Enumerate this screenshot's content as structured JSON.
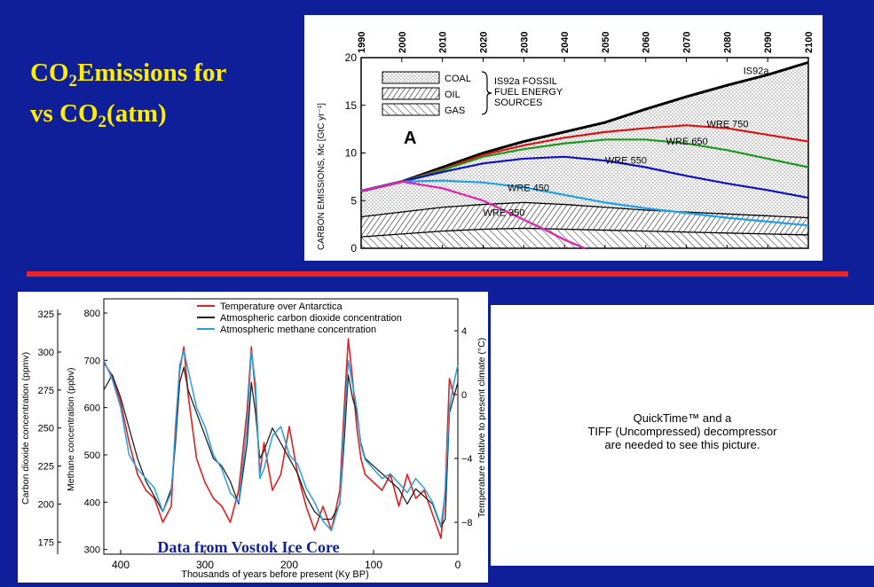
{
  "slide": {
    "title_parts": [
      "CO",
      "2",
      "Emissions for",
      "vs CO",
      "2",
      "(atm)"
    ],
    "colors": {
      "background": "#0f1f9a",
      "title": "#ffee00",
      "divider": "#e8262a"
    }
  },
  "quicktime_notice": {
    "lines": [
      "QuickTime™ and a",
      "TIFF (Uncompressed) decompressor",
      "are needed to see this picture."
    ]
  },
  "chart_data": [
    {
      "type": "line",
      "panel_label": "A",
      "xlabel": "",
      "ylabel": "CARBON EMISSIONS, Ṁc [GtC yr⁻¹]",
      "xlim": [
        1990,
        2100
      ],
      "ylim": [
        0,
        20
      ],
      "x_ticks": [
        "1990",
        "2000",
        "2010",
        "2020",
        "2030",
        "2040",
        "2050",
        "2060",
        "2070",
        "2080",
        "2090",
        "2100"
      ],
      "y_ticks": [
        "0",
        "5",
        "10",
        "15",
        "20"
      ],
      "legend": {
        "entries": [
          "COAL",
          "OIL",
          "GAS"
        ],
        "group_label": [
          "IS92a FOSSIL",
          "FUEL ENERGY",
          "SOURCES"
        ]
      },
      "series": [
        {
          "name": "IS92a",
          "color": "#000000",
          "x": [
            1990,
            2000,
            2010,
            2020,
            2030,
            2040,
            2050,
            2060,
            2070,
            2080,
            2090,
            2100
          ],
          "y": [
            6.0,
            7.0,
            8.5,
            10.0,
            11.2,
            12.2,
            13.2,
            14.6,
            15.9,
            17.1,
            18.2,
            19.5
          ]
        },
        {
          "name": "WRE 750",
          "color": "#e01010",
          "x": [
            1990,
            2000,
            2010,
            2020,
            2030,
            2040,
            2050,
            2060,
            2070,
            2080,
            2090,
            2100
          ],
          "y": [
            6.0,
            7.0,
            8.3,
            9.8,
            10.8,
            11.6,
            12.2,
            12.6,
            12.9,
            12.6,
            11.9,
            11.2
          ]
        },
        {
          "name": "WRE 650",
          "color": "#1a9a1a",
          "x": [
            1990,
            2000,
            2010,
            2020,
            2030,
            2040,
            2050,
            2060,
            2070,
            2080,
            2090,
            2100
          ],
          "y": [
            6.0,
            7.0,
            8.2,
            9.6,
            10.4,
            11.0,
            11.4,
            11.4,
            11.0,
            10.3,
            9.4,
            8.5
          ]
        },
        {
          "name": "WRE 550",
          "color": "#1010c0",
          "x": [
            1990,
            2000,
            2010,
            2020,
            2030,
            2040,
            2050,
            2060,
            2070,
            2080,
            2090,
            2100
          ],
          "y": [
            6.0,
            7.0,
            8.0,
            8.9,
            9.4,
            9.6,
            9.2,
            8.5,
            7.6,
            6.8,
            6.1,
            5.3
          ]
        },
        {
          "name": "WRE 450",
          "color": "#20a0e8",
          "x": [
            1990,
            2000,
            2010,
            2020,
            2030,
            2040,
            2050,
            2060,
            2070,
            2080,
            2090,
            2100
          ],
          "y": [
            6.0,
            7.0,
            7.1,
            6.9,
            6.4,
            5.6,
            4.8,
            4.2,
            3.7,
            3.2,
            2.8,
            2.4
          ]
        },
        {
          "name": "WRE 350",
          "color": "#e020b0",
          "x": [
            1990,
            2000,
            2010,
            2020,
            2025,
            2030,
            2035,
            2040,
            2045
          ],
          "y": [
            6.0,
            7.0,
            6.3,
            5.0,
            4.0,
            3.0,
            2.0,
            0.9,
            0.0
          ]
        }
      ],
      "fossil_bands": {
        "x": [
          1990,
          2000,
          2010,
          2020,
          2030,
          2040,
          2050,
          2060,
          2070,
          2080,
          2090,
          2100
        ],
        "gas_top": [
          1.2,
          1.5,
          1.8,
          2.0,
          2.1,
          2.0,
          1.9,
          1.8,
          1.7,
          1.6,
          1.5,
          1.4
        ],
        "oil_top": [
          3.3,
          3.8,
          4.3,
          4.6,
          4.8,
          4.6,
          4.3,
          4.0,
          3.8,
          3.6,
          3.4,
          3.2
        ]
      },
      "annotations": [
        "IS92a",
        "WRE 750",
        "WRE 650",
        "WRE 550",
        "WRE 450",
        "WRE 350"
      ]
    },
    {
      "type": "line",
      "caption": "Data from Vostok Ice Core",
      "xlabel": "Thousands of years before present (Ky BP)",
      "xlim": [
        420,
        0
      ],
      "x_ticks": [
        "400",
        "300",
        "200",
        "100",
        "0"
      ],
      "axes": {
        "co2": {
          "label": "Carbon dioxide concentration (ppmv)",
          "range": [
            167,
            335
          ],
          "ticks": [
            "175",
            "200",
            "225",
            "250",
            "275",
            "300",
            "325"
          ]
        },
        "methane": {
          "label": "Methane concentration (ppbv)",
          "range": [
            290,
            830
          ],
          "ticks": [
            "300",
            "400",
            "500",
            "600",
            "700",
            "800"
          ]
        },
        "temperature": {
          "label": "Temperature relative to present climate (°C)",
          "range": [
            -10,
            6
          ],
          "ticks": [
            "4",
            "0",
            "−4",
            "−8"
          ]
        }
      },
      "series": [
        {
          "name": "Temperature over Antarctica",
          "color": "#e02020"
        },
        {
          "name": "Atmospheric carbon dioxide concentration",
          "color": "#222222"
        },
        {
          "name": "Atmospheric methane concentration",
          "color": "#2a9fe0"
        }
      ],
      "x": [
        420,
        410,
        400,
        390,
        380,
        370,
        360,
        350,
        340,
        335,
        330,
        325,
        320,
        310,
        300,
        290,
        280,
        270,
        260,
        250,
        245,
        240,
        235,
        230,
        220,
        210,
        200,
        190,
        180,
        170,
        160,
        150,
        140,
        135,
        130,
        125,
        120,
        115,
        110,
        100,
        90,
        80,
        70,
        60,
        50,
        40,
        30,
        20,
        15,
        10,
        5,
        0
      ],
      "temperature": [
        2.0,
        1.2,
        -0.5,
        -3.0,
        -5.0,
        -6.0,
        -6.5,
        -8.0,
        -7.0,
        -2.0,
        1.5,
        3.0,
        0.0,
        -4.0,
        -5.5,
        -6.5,
        -7.0,
        -8.0,
        -6.0,
        -1.0,
        3.0,
        0.0,
        -5.0,
        -3.0,
        -6.0,
        -5.0,
        -2.0,
        -5.0,
        -7.0,
        -8.5,
        -7.0,
        -8.5,
        -6.0,
        -1.0,
        3.5,
        1.0,
        -2.0,
        -4.0,
        -5.0,
        -5.5,
        -6.0,
        -5.0,
        -7.0,
        -5.0,
        -6.5,
        -6.0,
        -7.5,
        -9.0,
        -6.0,
        1.0,
        0.0,
        0.0
      ],
      "co2": [
        275,
        285,
        270,
        250,
        230,
        215,
        205,
        195,
        210,
        240,
        280,
        290,
        275,
        260,
        245,
        230,
        225,
        215,
        200,
        240,
        280,
        260,
        230,
        235,
        250,
        240,
        230,
        220,
        205,
        195,
        190,
        190,
        200,
        240,
        285,
        270,
        260,
        240,
        230,
        225,
        220,
        215,
        210,
        200,
        210,
        205,
        200,
        185,
        190,
        260,
        270,
        280
      ],
      "methane": [
        700,
        660,
        600,
        500,
        470,
        450,
        430,
        380,
        420,
        550,
        690,
        720,
        680,
        600,
        560,
        500,
        470,
        420,
        400,
        560,
        720,
        650,
        450,
        470,
        540,
        560,
        500,
        480,
        430,
        400,
        360,
        340,
        400,
        560,
        700,
        650,
        600,
        520,
        490,
        470,
        450,
        460,
        440,
        420,
        450,
        430,
        400,
        350,
        420,
        600,
        650,
        690
      ]
    }
  ]
}
